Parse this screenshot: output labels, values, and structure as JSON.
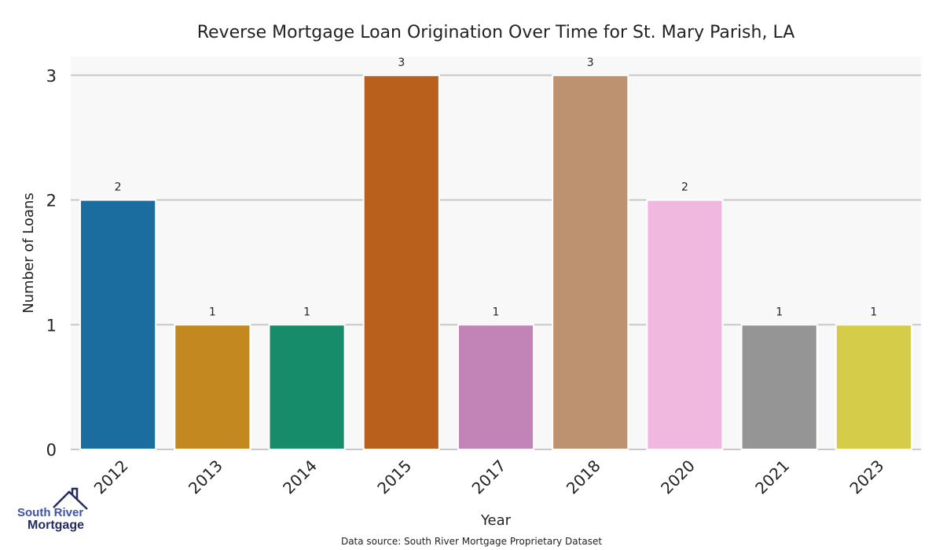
{
  "chart_data": {
    "type": "bar",
    "title": "Reverse Mortgage Loan Origination Over Time for St. Mary Parish, LA",
    "xlabel": "Year",
    "ylabel": "Number of Loans",
    "categories": [
      "2012",
      "2013",
      "2014",
      "2015",
      "2017",
      "2018",
      "2020",
      "2021",
      "2023"
    ],
    "values": [
      2,
      1,
      1,
      3,
      1,
      3,
      2,
      1,
      1
    ],
    "colors": [
      "#1a6d9e",
      "#c38820",
      "#178c6b",
      "#b8601c",
      "#c283b6",
      "#bc9270",
      "#f0b7df",
      "#959595",
      "#d5cc4a"
    ],
    "ylim": [
      0,
      3.15
    ],
    "yticks": [
      "0",
      "1",
      "2",
      "3"
    ],
    "grid": true,
    "plot_background": "#f8f8f8"
  },
  "footer": {
    "source": "Data source: South River Mortgage Proprietary Dataset"
  },
  "logo": {
    "line1": "South River",
    "line2": "Mortgage"
  }
}
